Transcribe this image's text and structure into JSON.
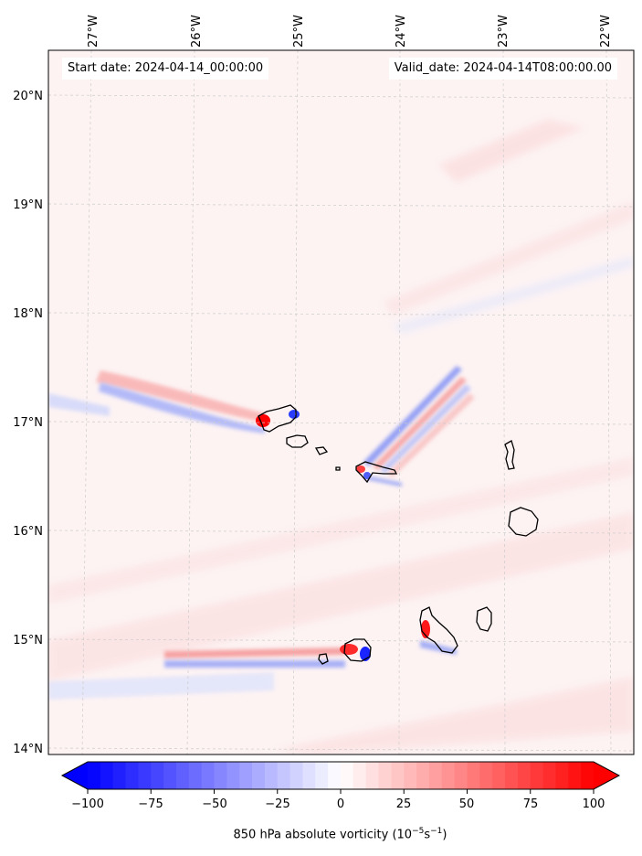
{
  "map": {
    "start_date": "Start date: 2024-04-14_00:00:00",
    "valid_date": "Valid_date: 2024-04-14T08:00:00.00",
    "lon_labels": [
      "27°W",
      "26°W",
      "25°W",
      "24°W",
      "23°W",
      "22°W"
    ],
    "lat_labels": [
      "20°N",
      "19°N",
      "18°N",
      "17°N",
      "16°N",
      "15°N",
      "14°N"
    ]
  },
  "colorbar": {
    "ticks": [
      "−100",
      "−75",
      "−50",
      "−25",
      "0",
      "25",
      "50",
      "75",
      "100"
    ],
    "title_main": "850 hPa absolute vorticity (10",
    "title_exp1": "−5",
    "title_mid": "s",
    "title_exp2": "−1",
    "title_end": ")",
    "color_min": "#0000ff",
    "color_mid": "#ffffff",
    "color_max": "#ff0000"
  }
}
